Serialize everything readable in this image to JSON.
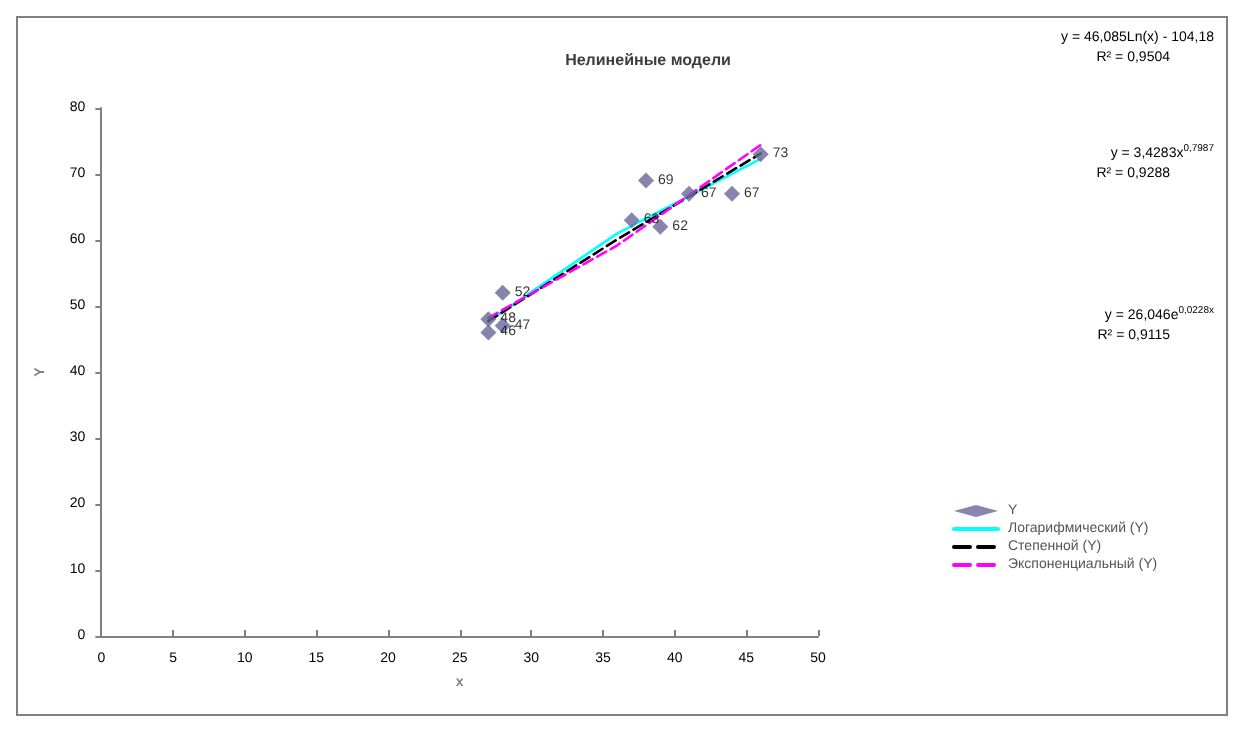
{
  "chart_data": {
    "type": "scatter",
    "title": "Нелинейные модели",
    "xlabel": "x",
    "ylabel": "Y",
    "xlim": [
      0,
      50
    ],
    "xticks": [
      0,
      5,
      10,
      15,
      20,
      25,
      30,
      35,
      40,
      45,
      50
    ],
    "ylim": [
      0,
      80
    ],
    "yticks": [
      0,
      10,
      20,
      30,
      40,
      50,
      60,
      70,
      80
    ],
    "grid": false,
    "legend": "right",
    "marker": "diamond",
    "series": [
      {
        "name": "Y",
        "color": "#666699",
        "x": [
          27,
          27,
          28,
          28,
          37,
          38,
          39,
          41,
          44,
          46
        ],
        "values": [
          46,
          48,
          47,
          52,
          63,
          69,
          62,
          67,
          67,
          73
        ],
        "value_labels": [
          "46",
          "48",
          "47",
          "52",
          "63",
          "69",
          "62",
          "67",
          "67",
          "73"
        ]
      },
      {
        "name": "Логарифмический (Y)",
        "type": "line",
        "color": "#00ffff",
        "line_style": "solid",
        "marker": "none",
        "x": [
          27,
          36,
          46
        ],
        "values": [
          47.7,
          61,
          72.3
        ]
      },
      {
        "name": "Степенной (Y)",
        "type": "line",
        "color": "#000000",
        "line_style": "dashed",
        "marker": "none",
        "x": [
          27,
          36,
          46
        ],
        "values": [
          47.7,
          60.1,
          73.1
        ]
      },
      {
        "name": "Экспоненциальный (Y)",
        "type": "line",
        "color": "#ff00ff",
        "line_style": "dashed",
        "marker": "none",
        "x": [
          27,
          36,
          46
        ],
        "values": [
          48.2,
          59.2,
          74.4
        ]
      }
    ],
    "annotations": [
      "y = 46,085Ln(x) - 104,18",
      "R² = 0,9504",
      "y = 3,4283x$^{0,7987}$",
      "R² = 0,9288",
      "y = 26,046e$^{0,0228x}$",
      "R² = 0,9115"
    ]
  }
}
